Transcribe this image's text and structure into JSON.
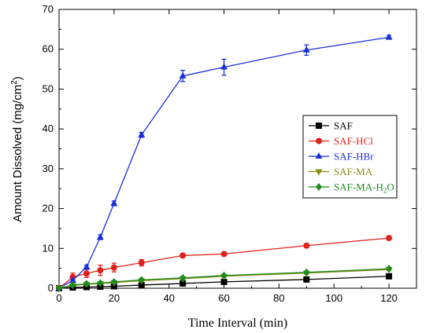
{
  "chart_data": {
    "type": "line",
    "xlabel": "Time Interval (min)",
    "ylabel": "Amount Dissolved (mg/cm",
    "ylabel_sup": "2",
    "ylabel_end": ")",
    "xlim": [
      0,
      130
    ],
    "ylim": [
      0,
      70
    ],
    "xticks": [
      0,
      20,
      40,
      60,
      80,
      100,
      120
    ],
    "yticks": [
      0,
      10,
      20,
      30,
      40,
      50,
      60,
      70
    ],
    "legend_position": "center-right",
    "grid": false,
    "x": [
      0,
      5,
      10,
      15,
      20,
      30,
      45,
      60,
      90,
      120
    ],
    "series": [
      {
        "name": "SAF",
        "color": "#000000",
        "marker": "square",
        "values": [
          0,
          0.2,
          0.3,
          0.4,
          0.5,
          0.8,
          1.2,
          1.6,
          2.2,
          3.0
        ],
        "errors": [
          0,
          0.2,
          0.2,
          0.2,
          0.2,
          0.3,
          0.4,
          0.4,
          0.5,
          0.5
        ]
      },
      {
        "name": "SAF-HCl",
        "color": "#e0201b",
        "marker": "circle",
        "values": [
          0,
          2.8,
          3.7,
          4.5,
          5.2,
          6.4,
          8.2,
          8.6,
          10.7,
          12.6
        ],
        "errors": [
          0,
          1.0,
          1.0,
          1.3,
          1.1,
          0.8,
          0.5,
          0.4,
          0.4,
          0.5
        ]
      },
      {
        "name": "SAF-HBr",
        "color": "#1a2fd6",
        "marker": "triangle-up",
        "values": [
          0,
          2.0,
          5.3,
          12.8,
          21.3,
          38.5,
          53.3,
          55.5,
          59.8,
          63.0
        ],
        "errors": [
          0,
          0.4,
          0.5,
          0.6,
          0.6,
          0.6,
          1.4,
          2.0,
          1.3,
          0.5
        ]
      },
      {
        "name": "SAF-MA",
        "color": "#8b8a16",
        "marker": "triangle-down",
        "values": [
          0,
          0.7,
          1.0,
          1.2,
          1.4,
          1.9,
          2.4,
          3.0,
          3.8,
          4.7
        ],
        "errors": [
          0,
          0.3,
          0.3,
          0.3,
          0.3,
          0.3,
          0.3,
          0.3,
          0.3,
          0.3
        ]
      },
      {
        "name": "SAF-MA-H",
        "name_sub": "2",
        "name_end": "O",
        "color": "#1f8a1f",
        "marker": "diamond",
        "values": [
          0,
          0.8,
          1.1,
          1.3,
          1.6,
          2.1,
          2.6,
          3.2,
          4.0,
          4.9
        ],
        "errors": [
          0,
          0.3,
          0.3,
          0.3,
          0.3,
          0.3,
          0.3,
          0.3,
          0.3,
          0.3
        ]
      }
    ]
  }
}
